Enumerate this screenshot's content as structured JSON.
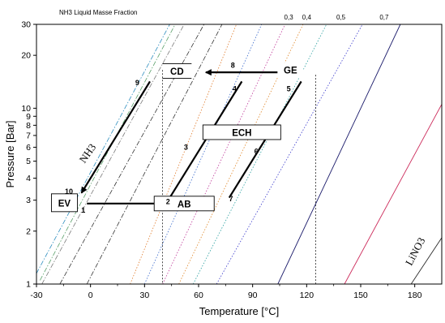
{
  "chart_data": {
    "type": "line",
    "title": "",
    "xlabel": "Temperature [°C]",
    "ylabel": "Pressure [Bar]",
    "xlim": [
      -30,
      195
    ],
    "ylim": [
      1,
      30
    ],
    "y_scale": "log",
    "x_ticks": [
      -30,
      0,
      30,
      60,
      90,
      120,
      150,
      180
    ],
    "y_ticks": [
      1,
      2,
      3,
      4,
      5,
      6,
      7,
      8,
      9,
      10,
      20,
      30
    ],
    "grid": false,
    "top_axis_label": "NH3 Liquid Masse Fraction",
    "concentration_labels": [
      "0,7",
      "0,5",
      "0,4",
      "0,3"
    ],
    "series": [
      {
        "style": "dashdot",
        "color": "#2f8fbf",
        "points": [
          [
            -30,
            1.15
          ],
          [
            44,
            30
          ]
        ]
      },
      {
        "style": "dashdot",
        "color": "#5aa06a",
        "points": [
          [
            -28,
            1.05
          ],
          [
            47,
            30
          ]
        ]
      },
      {
        "style": "dashdot",
        "color": "#7a7a7a",
        "points": [
          [
            -27,
            1.0
          ],
          [
            52,
            30
          ]
        ]
      },
      {
        "style": "dashdot",
        "color": "#333333",
        "points": [
          [
            -17,
            1.0
          ],
          [
            63,
            30
          ]
        ]
      },
      {
        "style": "dashdot",
        "color": "#333333",
        "points": [
          [
            -2,
            1.0
          ],
          [
            73,
            30
          ]
        ]
      },
      {
        "style": "dotted",
        "color": "#e07a2a",
        "points": [
          [
            22,
            1.0
          ],
          [
            81,
            30
          ]
        ]
      },
      {
        "style": "dotted",
        "color": "#3a6acc",
        "points": [
          [
            30,
            1.0
          ],
          [
            95,
            30
          ]
        ]
      },
      {
        "style": "dotted",
        "color": "#c03a9a",
        "points": [
          [
            40,
            1.0
          ],
          [
            108,
            30
          ]
        ]
      },
      {
        "style": "dotted",
        "color": "#e0882a",
        "points": [
          [
            49,
            1.0
          ],
          [
            118,
            30
          ]
        ]
      },
      {
        "style": "dotted",
        "color": "#2aa0a0",
        "points": [
          [
            57,
            1.0
          ],
          [
            131,
            30
          ]
        ]
      },
      {
        "style": "dotted",
        "color": "#3a3acc",
        "points": [
          [
            70,
            1.0
          ],
          [
            151,
            30
          ]
        ]
      },
      {
        "style": "solid",
        "color": "#1a1a6a",
        "points": [
          [
            104,
            1.0
          ],
          [
            172,
            30
          ]
        ]
      },
      {
        "style": "solid",
        "color": "#cc2a5a",
        "points": [
          [
            141,
            1.0
          ],
          [
            196,
            11
          ]
        ]
      },
      {
        "style": "solid",
        "color": "#2a2a2a",
        "points": [
          [
            178,
            1.0
          ],
          [
            196,
            1.9
          ]
        ]
      }
    ],
    "cycle": {
      "nodes": [
        {
          "label": "1",
          "x": -4,
          "y": 2.55
        },
        {
          "label": "2",
          "x": 43,
          "y": 2.85
        },
        {
          "label": "3",
          "x": 53,
          "y": 5.8
        },
        {
          "label": "4",
          "x": 80,
          "y": 12.5
        },
        {
          "label": "5",
          "x": 110,
          "y": 12.5
        },
        {
          "label": "6",
          "x": 92,
          "y": 5.5
        },
        {
          "label": "7",
          "x": 78,
          "y": 2.95
        },
        {
          "label": "8",
          "x": 79,
          "y": 17.0
        },
        {
          "label": "9",
          "x": 26,
          "y": 13.5
        },
        {
          "label": "10",
          "x": -12,
          "y": 3.25
        }
      ],
      "arrows": [
        {
          "from": [
            104,
            16
          ],
          "to": [
            64,
            16
          ]
        },
        {
          "from": [
            33,
            14.2
          ],
          "to": [
            -5,
            3.3
          ]
        },
        {
          "from": [
            -2,
            2.87
          ],
          "to": [
            53,
            2.87
          ]
        }
      ],
      "lines": [
        {
          "from": [
            44,
            3.1
          ],
          "to": [
            84,
            14.2
          ]
        },
        {
          "from": [
            77,
            3.1
          ],
          "to": [
            117,
            14.2
          ]
        }
      ],
      "vlines": [
        {
          "x": 40,
          "y_top": 16.5
        },
        {
          "x": 125,
          "y_top": 15.5
        }
      ],
      "boxes": [
        {
          "label": "CD",
          "x": 48,
          "y": 16.3
        },
        {
          "label": "GE",
          "x": 111,
          "y": 16.5
        },
        {
          "label": "ECH",
          "x": 84,
          "y": 7.3
        },
        {
          "label": "AB",
          "x": 52,
          "y": 2.87
        },
        {
          "label": "EV",
          "x": -14.5,
          "y": 2.9
        }
      ]
    },
    "annotations": [
      {
        "text": "NH3",
        "x": 0,
        "y": 5.4,
        "rotation": -55
      },
      {
        "text": "LiNO3",
        "x": 182,
        "y": 1.5,
        "rotation": -62
      }
    ]
  }
}
